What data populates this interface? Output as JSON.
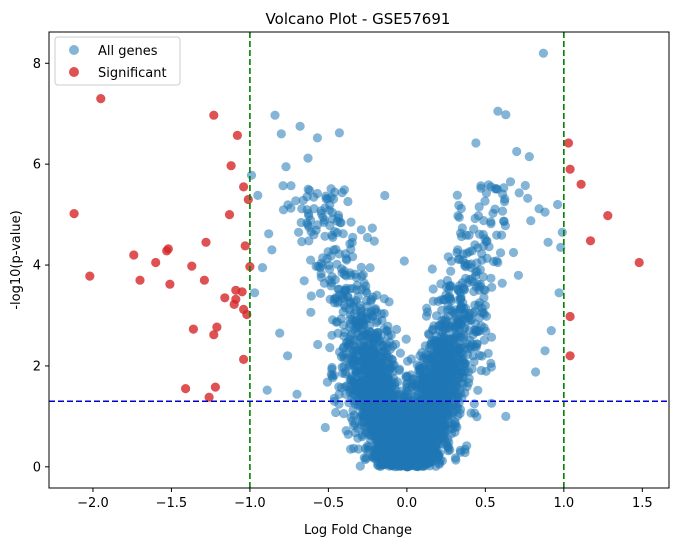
{
  "chart_data": {
    "type": "scatter",
    "title": "Volcano Plot - GSE57691",
    "xlabel": "Log Fold Change",
    "ylabel": "-log10(p-value)",
    "xlim": [
      -2.28,
      1.67
    ],
    "ylim": [
      -0.42,
      8.62
    ],
    "x_ticks": [
      -2.0,
      -1.5,
      -1.0,
      -0.5,
      0.0,
      0.5,
      1.0,
      1.5
    ],
    "x_tick_labels": [
      "−2.0",
      "−1.5",
      "−1.0",
      "−0.5",
      "0.0",
      "0.5",
      "1.0",
      "1.5"
    ],
    "y_ticks": [
      0,
      2,
      4,
      6,
      8
    ],
    "y_tick_labels": [
      "0",
      "2",
      "4",
      "6",
      "8"
    ],
    "grid": false,
    "legend_position": "top-left",
    "threshold_lines": {
      "vertical": [
        -1.0,
        1.0
      ],
      "vertical_color": "#008000",
      "horizontal": [
        1.3
      ],
      "horizontal_color": "#0000cc"
    },
    "series": [
      {
        "name": "All genes",
        "color": "#1f77b4",
        "alpha": 0.55,
        "bulk_cloud_points": 3200,
        "extra_points": [
          {
            "x": 0.87,
            "y": 8.2
          },
          {
            "x": -0.84,
            "y": 6.97
          },
          {
            "x": -0.8,
            "y": 6.6
          },
          {
            "x": -0.68,
            "y": 6.75
          },
          {
            "x": -0.43,
            "y": 6.62
          },
          {
            "x": -0.57,
            "y": 6.52
          },
          {
            "x": 0.58,
            "y": 7.05
          },
          {
            "x": 0.63,
            "y": 6.98
          },
          {
            "x": 0.44,
            "y": 6.42
          },
          {
            "x": 0.7,
            "y": 6.25
          },
          {
            "x": 0.78,
            "y": 6.15
          },
          {
            "x": -0.99,
            "y": 5.78
          },
          {
            "x": -0.77,
            "y": 5.95
          },
          {
            "x": 0.96,
            "y": 5.2
          },
          {
            "x": 0.88,
            "y": 5.05
          },
          {
            "x": -0.95,
            "y": 5.38
          },
          {
            "x": -0.88,
            "y": 4.62
          },
          {
            "x": 0.98,
            "y": 4.35
          },
          {
            "x": -0.92,
            "y": 3.95
          },
          {
            "x": 0.97,
            "y": 3.45
          },
          {
            "x": -0.97,
            "y": 3.45
          },
          {
            "x": 0.88,
            "y": 2.3
          },
          {
            "x": -0.76,
            "y": 2.2
          },
          {
            "x": 0.82,
            "y": 1.88
          },
          {
            "x": -0.89,
            "y": 1.52
          },
          {
            "x": -0.7,
            "y": 1.44
          },
          {
            "x": 0.63,
            "y": 1.0
          },
          {
            "x": -0.52,
            "y": 0.78
          },
          {
            "x": 0.54,
            "y": 1.26
          },
          {
            "x": -0.81,
            "y": 2.65
          },
          {
            "x": 0.92,
            "y": 2.7
          },
          {
            "x": 0.99,
            "y": 4.65
          },
          {
            "x": -0.86,
            "y": 4.3
          },
          {
            "x": 0.9,
            "y": 4.45
          },
          {
            "x": -0.63,
            "y": 6.12
          },
          {
            "x": 0.66,
            "y": 5.65
          }
        ]
      },
      {
        "name": "Significant",
        "color": "#d62728",
        "alpha": 0.8,
        "points": [
          {
            "x": -1.95,
            "y": 7.3
          },
          {
            "x": -1.23,
            "y": 6.97
          },
          {
            "x": -1.08,
            "y": 6.57
          },
          {
            "x": -1.12,
            "y": 5.97
          },
          {
            "x": -1.04,
            "y": 5.55
          },
          {
            "x": -1.01,
            "y": 5.3
          },
          {
            "x": -2.12,
            "y": 5.02
          },
          {
            "x": -1.13,
            "y": 5.0
          },
          {
            "x": -1.03,
            "y": 4.38
          },
          {
            "x": -1.28,
            "y": 4.45
          },
          {
            "x": -1.52,
            "y": 4.32
          },
          {
            "x": -1.53,
            "y": 4.28
          },
          {
            "x": -1.74,
            "y": 4.2
          },
          {
            "x": -1.6,
            "y": 4.05
          },
          {
            "x": -1.37,
            "y": 3.98
          },
          {
            "x": -1.0,
            "y": 3.97
          },
          {
            "x": -2.02,
            "y": 3.78
          },
          {
            "x": -1.7,
            "y": 3.7
          },
          {
            "x": -1.29,
            "y": 3.7
          },
          {
            "x": -1.51,
            "y": 3.62
          },
          {
            "x": -1.09,
            "y": 3.5
          },
          {
            "x": -1.05,
            "y": 3.47
          },
          {
            "x": -1.16,
            "y": 3.35
          },
          {
            "x": -1.09,
            "y": 3.32
          },
          {
            "x": -1.1,
            "y": 3.22
          },
          {
            "x": -1.04,
            "y": 3.12
          },
          {
            "x": -1.02,
            "y": 3.02
          },
          {
            "x": -1.36,
            "y": 2.73
          },
          {
            "x": -1.21,
            "y": 2.77
          },
          {
            "x": -1.23,
            "y": 2.62
          },
          {
            "x": -1.04,
            "y": 2.13
          },
          {
            "x": -1.22,
            "y": 1.58
          },
          {
            "x": -1.41,
            "y": 1.55
          },
          {
            "x": -1.26,
            "y": 1.38
          },
          {
            "x": 1.03,
            "y": 6.42
          },
          {
            "x": 1.04,
            "y": 5.9
          },
          {
            "x": 1.11,
            "y": 5.6
          },
          {
            "x": 1.28,
            "y": 4.98
          },
          {
            "x": 1.17,
            "y": 4.48
          },
          {
            "x": 1.48,
            "y": 4.05
          },
          {
            "x": 1.04,
            "y": 2.98
          },
          {
            "x": 1.04,
            "y": 2.2
          }
        ]
      }
    ]
  }
}
